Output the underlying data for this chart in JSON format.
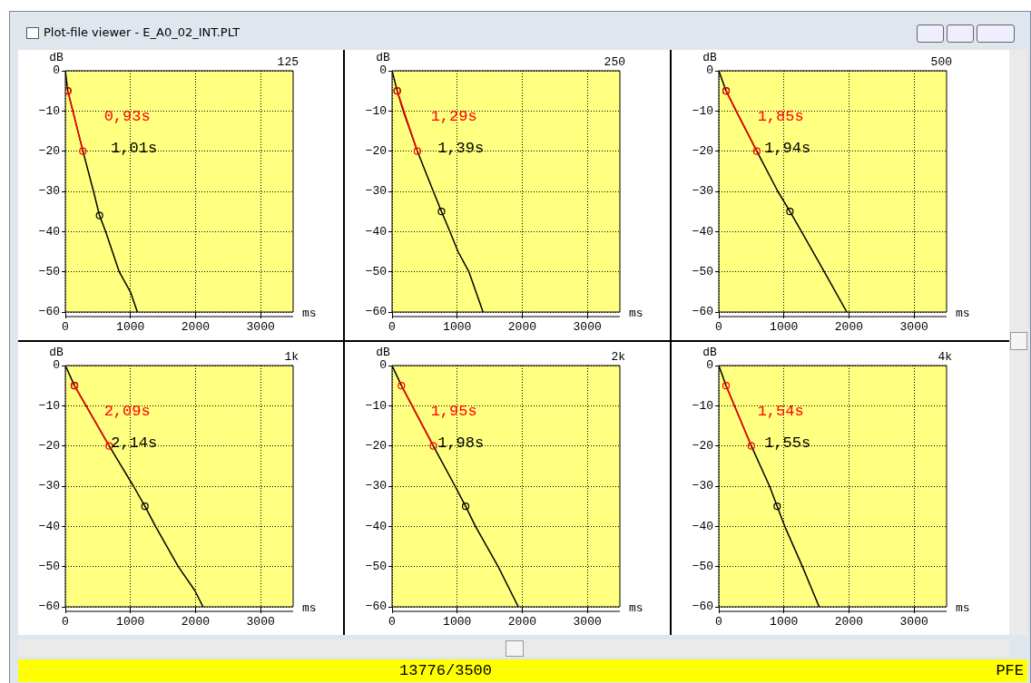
{
  "chart_data": [
    {
      "type": "line",
      "title": "125",
      "xlabel": "ms",
      "ylabel": "dB",
      "xlim": [
        0,
        3500
      ],
      "xticks": [
        0,
        1000,
        2000,
        3000
      ],
      "ylim": [
        -60,
        0
      ],
      "yticks": [
        0,
        -10,
        -20,
        -30,
        -40,
        -50,
        -60
      ],
      "grid": true,
      "annotations": [
        "0,93s",
        "1,01s",
        "Plot-file viewer - E_A0_02_INT.PLT"
      ],
      "series": [
        {
          "type": "line",
          "color": "#ff0000",
          "marker": "circle",
          "x": [
            37,
            270
          ],
          "values": [
            -5,
            -20
          ]
        },
        {
          "type": "line",
          "color": "#000000",
          "marker": "none",
          "x": [
            0,
            37,
            116,
            270,
            433,
            525,
            619,
            828,
            1000,
            1107
          ],
          "values": [
            0,
            -5,
            -10,
            -20,
            -30,
            -36,
            -40,
            -50,
            -55,
            -60
          ]
        },
        {
          "type": "scatter",
          "color": "#000000",
          "marker": "circle",
          "x": [
            37,
            525
          ],
          "values": [
            -5,
            -36
          ]
        }
      ]
    },
    {
      "type": "line",
      "title": "250",
      "xlabel": "ms",
      "ylabel": "dB",
      "xlim": [
        0,
        3500
      ],
      "xticks": [
        0,
        1000,
        2000,
        3000
      ],
      "ylim": [
        -60,
        0
      ],
      "yticks": [
        0,
        -10,
        -20,
        -30,
        -40,
        -50,
        -60
      ],
      "grid": true,
      "annotations": [
        "1,29s",
        "1,39s"
      ],
      "series": [
        {
          "type": "line",
          "color": "#ff0000",
          "marker": "circle",
          "x": [
            79,
            389
          ],
          "values": [
            -5,
            -20
          ]
        },
        {
          "type": "line",
          "color": "#000000",
          "marker": "none",
          "x": [
            0,
            79,
            171,
            389,
            634,
            759,
            889,
            1014,
            1181,
            1398
          ],
          "values": [
            0,
            -5,
            -10,
            -20,
            -30,
            -35,
            -40,
            -45,
            -50,
            -60
          ]
        },
        {
          "type": "scatter",
          "color": "#000000",
          "marker": "circle",
          "x": [
            79,
            759
          ],
          "values": [
            -5,
            -35
          ]
        }
      ]
    },
    {
      "type": "line",
      "title": "500",
      "xlabel": "ms",
      "ylabel": "dB",
      "xlim": [
        0,
        3500
      ],
      "xticks": [
        0,
        1000,
        2000,
        3000
      ],
      "ylim": [
        -60,
        0
      ],
      "yticks": [
        0,
        -10,
        -20,
        -30,
        -40,
        -50,
        -60
      ],
      "grid": true,
      "annotations": [
        "1,85s",
        "1,94s"
      ],
      "series": [
        {
          "type": "line",
          "color": "#ff0000",
          "marker": "circle",
          "x": [
            112,
            584
          ],
          "values": [
            -5,
            -20
          ]
        },
        {
          "type": "line",
          "color": "#000000",
          "marker": "none",
          "x": [
            0,
            112,
            266,
            584,
            907,
            1093,
            1271,
            1621,
            1967
          ],
          "values": [
            0,
            -5,
            -10,
            -20,
            -30,
            -35,
            -40,
            -50,
            -60
          ]
        },
        {
          "type": "scatter",
          "color": "#000000",
          "marker": "circle",
          "x": [
            112,
            1093
          ],
          "values": [
            -5,
            -35
          ]
        }
      ]
    },
    {
      "type": "line",
      "title": "1k",
      "xlabel": "ms",
      "ylabel": "dB",
      "xlim": [
        0,
        3500
      ],
      "xticks": [
        0,
        1000,
        2000,
        3000
      ],
      "ylim": [
        -60,
        0
      ],
      "yticks": [
        0,
        -10,
        -20,
        -30,
        -40,
        -50,
        -60
      ],
      "grid": true,
      "annotations": [
        "2,09s",
        "2,14s"
      ],
      "series": [
        {
          "type": "line",
          "color": "#ff0000",
          "marker": "circle",
          "x": [
            140,
            674
          ],
          "values": [
            -5,
            -20
          ]
        },
        {
          "type": "line",
          "color": "#000000",
          "marker": "none",
          "x": [
            0,
            140,
            674,
            1047,
            1223,
            1386,
            1735,
            1991,
            2116
          ],
          "values": [
            0,
            -5,
            -20,
            -30,
            -35,
            -40,
            -50,
            -56,
            -60
          ]
        },
        {
          "type": "scatter",
          "color": "#000000",
          "marker": "circle",
          "x": [
            140,
            1223
          ],
          "values": [
            -5,
            -35
          ]
        }
      ]
    },
    {
      "type": "line",
      "title": "2k",
      "xlabel": "ms",
      "ylabel": "dB",
      "xlim": [
        0,
        3500
      ],
      "xticks": [
        0,
        1000,
        2000,
        3000
      ],
      "ylim": [
        -60,
        0
      ],
      "yticks": [
        0,
        -10,
        -20,
        -30,
        -40,
        -50,
        -60
      ],
      "grid": true,
      "annotations": [
        "1,95s",
        "1,98s"
      ],
      "series": [
        {
          "type": "line",
          "color": "#ff0000",
          "marker": "circle",
          "x": [
            144,
            634
          ],
          "values": [
            -5,
            -20
          ]
        },
        {
          "type": "line",
          "color": "#000000",
          "marker": "none",
          "x": [
            0,
            144,
            634,
            968,
            1130,
            1282,
            1630,
            1940
          ],
          "values": [
            0,
            -5,
            -20,
            -30,
            -35,
            -40,
            -50,
            -60
          ]
        },
        {
          "type": "scatter",
          "color": "#000000",
          "marker": "circle",
          "x": [
            1130
          ],
          "values": [
            -35
          ]
        }
      ]
    },
    {
      "type": "line",
      "title": "4k",
      "xlabel": "ms",
      "ylabel": "dB",
      "xlim": [
        0,
        3500
      ],
      "xticks": [
        0,
        1000,
        2000,
        3000
      ],
      "ylim": [
        -60,
        0
      ],
      "yticks": [
        0,
        -10,
        -20,
        -30,
        -40,
        -50,
        -60
      ],
      "grid": true,
      "annotations": [
        "1,54s",
        "1,55s",
        "13776/3500",
        "PFE"
      ],
      "series": [
        {
          "type": "line",
          "color": "#ff0000",
          "marker": "circle",
          "x": [
            112,
            500
          ],
          "values": [
            -5,
            -20
          ]
        },
        {
          "type": "line",
          "color": "#000000",
          "marker": "none",
          "x": [
            0,
            112,
            500,
            780,
            897,
            1014,
            1285,
            1542
          ],
          "values": [
            0,
            -5,
            -20,
            -30,
            -35,
            -40,
            -50,
            -60
          ]
        },
        {
          "type": "scatter",
          "color": "#000000",
          "marker": "circle",
          "x": [
            897
          ],
          "values": [
            -35
          ]
        }
      ]
    }
  ]
}
